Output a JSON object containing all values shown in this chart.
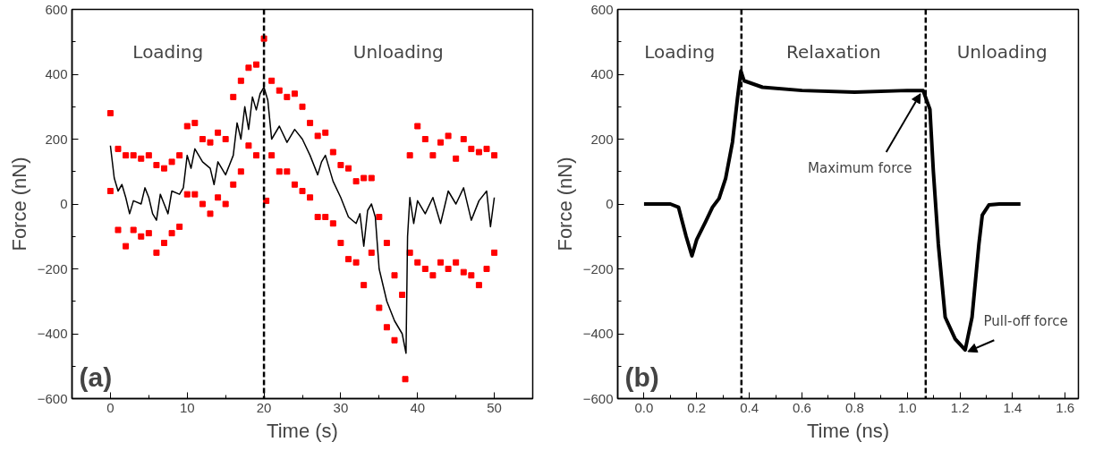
{
  "chart_data": [
    {
      "type": "scatter",
      "xlabel": "Time (s)",
      "ylabel": "Force (nN)",
      "xlim": [
        -5,
        55
      ],
      "ylim": [
        -600,
        600
      ],
      "xticks": [
        0,
        10,
        20,
        30,
        40,
        50
      ],
      "yticks": [
        -600,
        -400,
        -200,
        0,
        200,
        400,
        600
      ],
      "grid": false,
      "marker": "square",
      "series": [
        {
          "type": "scatter",
          "color": "#ff0000",
          "x": [
            0,
            1,
            2,
            3,
            4,
            5,
            6,
            7,
            8,
            9,
            10,
            11,
            12,
            13,
            14,
            15,
            16,
            17,
            18,
            19,
            20,
            21,
            22,
            23,
            24,
            25,
            26,
            27,
            28,
            29,
            30,
            31,
            32,
            33,
            34,
            35,
            36,
            37,
            38,
            39,
            40,
            41,
            42,
            43,
            44,
            45,
            46,
            47,
            48,
            49,
            50,
            0,
            1,
            2,
            3,
            4,
            5,
            6,
            7,
            8,
            9,
            10,
            11,
            12,
            13,
            14,
            15,
            16,
            17,
            18,
            19,
            20.3,
            21,
            22,
            23,
            24,
            25,
            26,
            27,
            28,
            29,
            30,
            31,
            32,
            33,
            34,
            35,
            36,
            37,
            38.4,
            39,
            40,
            41,
            42,
            43,
            44,
            45,
            46,
            47,
            48,
            49,
            50
          ],
          "values": [
            280,
            170,
            150,
            150,
            140,
            150,
            120,
            110,
            130,
            150,
            240,
            250,
            200,
            190,
            220,
            200,
            330,
            380,
            420,
            430,
            510,
            380,
            350,
            330,
            340,
            300,
            250,
            210,
            220,
            160,
            120,
            110,
            70,
            80,
            80,
            -40,
            -120,
            -220,
            -280,
            150,
            240,
            200,
            150,
            190,
            210,
            140,
            200,
            170,
            160,
            170,
            150,
            40,
            -80,
            -130,
            -80,
            -100,
            -90,
            -150,
            -120,
            -90,
            -70,
            30,
            30,
            0,
            -30,
            20,
            0,
            60,
            100,
            180,
            150,
            10,
            150,
            100,
            100,
            60,
            40,
            20,
            -40,
            -40,
            -60,
            -120,
            -170,
            -180,
            -250,
            -150,
            -320,
            -380,
            -420,
            -540,
            -150,
            -180,
            -200,
            -220,
            -180,
            -200,
            -180,
            -210,
            -220,
            -250,
            -200,
            -150
          ]
        },
        {
          "type": "line",
          "color": "#000000",
          "marker": "none",
          "x": [
            0,
            0.5,
            1,
            1.5,
            2,
            2.5,
            3,
            4,
            4.5,
            5,
            5.5,
            6,
            6.5,
            7,
            7.5,
            8,
            9,
            9.5,
            10,
            10.5,
            11,
            12,
            13,
            13.5,
            14,
            15,
            16,
            16.5,
            17,
            17.5,
            18,
            18.5,
            19,
            19.5,
            20,
            20.5,
            21,
            22,
            23,
            24,
            25,
            26,
            27,
            27.5,
            28,
            29,
            30,
            31,
            32,
            32.5,
            33,
            33.5,
            34,
            34.5,
            35,
            36,
            37,
            38,
            38.5,
            38.7,
            39,
            39.5,
            40,
            41,
            42,
            43,
            44,
            45,
            46,
            47,
            48,
            49,
            49.5,
            50
          ],
          "values": [
            180,
            80,
            40,
            60,
            20,
            -30,
            10,
            0,
            50,
            20,
            -30,
            -50,
            30,
            0,
            -30,
            40,
            30,
            50,
            150,
            110,
            170,
            130,
            110,
            60,
            130,
            90,
            150,
            250,
            200,
            300,
            230,
            330,
            290,
            340,
            360,
            320,
            200,
            240,
            190,
            230,
            200,
            150,
            90,
            130,
            150,
            70,
            20,
            -40,
            -60,
            -30,
            -130,
            -20,
            0,
            -40,
            -200,
            -300,
            -360,
            -400,
            -460,
            -100,
            20,
            -60,
            10,
            -30,
            20,
            -60,
            40,
            0,
            50,
            -50,
            10,
            40,
            -70,
            20
          ]
        }
      ],
      "ref_lines": [
        {
          "axis": "x",
          "value": 20,
          "line_style": "dashed"
        }
      ],
      "annotations": [
        "(a)",
        "Loading",
        "Unloading"
      ]
    },
    {
      "type": "line",
      "xlabel": "Time (ns)",
      "ylabel": "Force (nN)",
      "xlim": [
        -0.1,
        1.65
      ],
      "ylim": [
        -600,
        600
      ],
      "xticks": [
        {
          "value": 0,
          "label": "0.0"
        },
        {
          "value": 0.2,
          "label": "0.2"
        },
        {
          "value": 0.4,
          "label": "0.4"
        },
        {
          "value": 0.6,
          "label": "0.6"
        },
        {
          "value": 0.8,
          "label": "0.8"
        },
        {
          "value": 1,
          "label": "1.0"
        },
        {
          "value": 1.2,
          "label": "1.2"
        },
        {
          "value": 1.4,
          "label": "1.4"
        },
        {
          "value": 1.6,
          "label": "1.6"
        }
      ],
      "yticks": [
        -600,
        -400,
        -200,
        0,
        200,
        400,
        600
      ],
      "grid": false,
      "marker": "none",
      "series": [
        {
          "color": "#000000",
          "x": [
            0,
            0.1,
            0.131,
            0.16,
            0.182,
            0.2,
            0.233,
            0.26,
            0.285,
            0.31,
            0.336,
            0.355,
            0.368,
            0.38,
            0.45,
            0.6,
            0.8,
            1.0,
            1.06,
            1.086,
            1.099,
            1.118,
            1.144,
            1.182,
            1.22,
            1.246,
            1.272,
            1.285,
            1.31,
            1.35,
            1.43
          ],
          "values": [
            0,
            0,
            -10,
            -100,
            -160,
            -110,
            -56,
            -10,
            17,
            79,
            191,
            326,
            410,
            380,
            360,
            350,
            345,
            350,
            350,
            292,
            101,
            -124,
            -349,
            -416,
            -450,
            -349,
            -124,
            -34,
            -3,
            0,
            0
          ]
        }
      ],
      "ref_lines": [
        {
          "axis": "x",
          "value": 0.37,
          "line_style": "dashed"
        },
        {
          "axis": "x",
          "value": 1.07,
          "line_style": "dashed"
        }
      ],
      "annotations": [
        "(b)",
        "Loading",
        "Relaxation",
        "Unloading",
        {
          "text": "Maximum force",
          "x": 1.05,
          "y": 340
        },
        {
          "text": "Pull-off force",
          "x": 1.23,
          "y": -455
        }
      ]
    }
  ]
}
